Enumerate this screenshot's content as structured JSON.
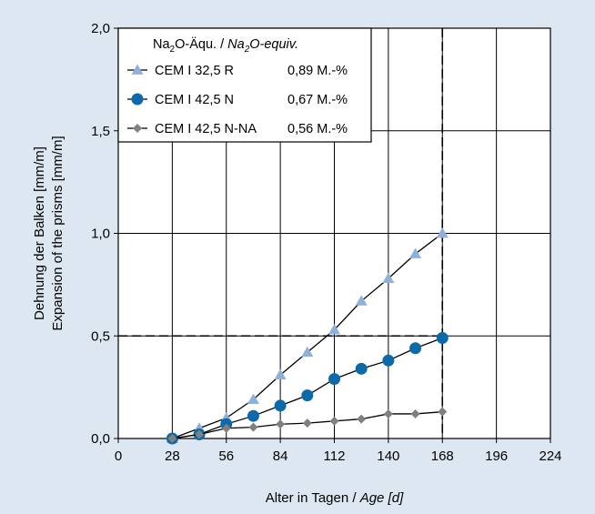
{
  "chart_data": {
    "type": "line",
    "xlabel": "Alter in Tagen / ",
    "xlabel_italic": "Age [d]",
    "ylabel_de": "Dehnung der Balken [mm/m]",
    "ylabel_en": "Expansion of the prisms [mm/m]",
    "xlim": [
      0,
      224
    ],
    "ylim": [
      0,
      2
    ],
    "xticks": [
      0,
      28,
      56,
      84,
      112,
      140,
      168,
      196,
      224
    ],
    "xtick_labels": [
      "0",
      "28",
      "56",
      "84",
      "112",
      "140",
      "168",
      "196",
      "224"
    ],
    "yticks": [
      0,
      0.5,
      1,
      1.5,
      2
    ],
    "ytick_labels": [
      "0,0",
      "0,5",
      "1,0",
      "1,5",
      "2,0"
    ],
    "grid": true,
    "reference_lines": {
      "x": 168,
      "y": 0.5,
      "style": "dashed"
    },
    "legend": {
      "title_prefix": "Na",
      "title_sub": "2",
      "title_mid": "O-Äqu. / ",
      "title_italic_prefix": "Na",
      "title_italic_sub": "2",
      "title_italic_rest": "O-equiv.",
      "placement": "top-left"
    },
    "series": [
      {
        "name": "CEM I 32,5 R",
        "na2o": "0,89 M.-%",
        "marker": "triangle",
        "color": "#8fb0dc",
        "x": [
          28,
          42,
          56,
          70,
          84,
          98,
          112,
          126,
          140,
          154,
          168
        ],
        "values": [
          0.0,
          0.05,
          0.1,
          0.19,
          0.31,
          0.42,
          0.53,
          0.67,
          0.78,
          0.9,
          1.0
        ]
      },
      {
        "name": "CEM I 42,5 N",
        "na2o": "0,67 M.-%",
        "marker": "circle",
        "color": "#0c6aaa",
        "x": [
          28,
          42,
          56,
          70,
          84,
          98,
          112,
          126,
          140,
          154,
          168
        ],
        "values": [
          0.0,
          0.02,
          0.07,
          0.11,
          0.16,
          0.21,
          0.29,
          0.34,
          0.38,
          0.44,
          0.49
        ]
      },
      {
        "name": "CEM I 42,5 N-NA",
        "na2o": "0,56 M.-%",
        "marker": "diamond",
        "color": "#808080",
        "x": [
          28,
          42,
          56,
          70,
          84,
          98,
          112,
          126,
          140,
          154,
          168
        ],
        "values": [
          0.0,
          0.02,
          0.05,
          0.055,
          0.07,
          0.075,
          0.085,
          0.095,
          0.12,
          0.12,
          0.13
        ]
      }
    ]
  }
}
